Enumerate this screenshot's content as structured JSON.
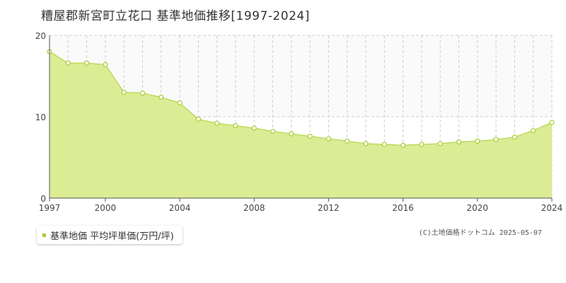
{
  "chart_data": {
    "type": "area",
    "title": "糟屋郡新宮町立花口 基準地価推移[1997-2024]",
    "x": [
      1997,
      1998,
      1999,
      2000,
      2001,
      2002,
      2003,
      2004,
      2005,
      2006,
      2007,
      2008,
      2009,
      2010,
      2011,
      2012,
      2013,
      2014,
      2015,
      2016,
      2017,
      2018,
      2019,
      2020,
      2021,
      2022,
      2023,
      2024
    ],
    "series": [
      {
        "name": "基準地価 平均坪単価(万円/坪)",
        "values": [
          18.0,
          16.6,
          16.6,
          16.4,
          13.0,
          12.9,
          12.4,
          11.7,
          9.7,
          9.2,
          8.9,
          8.6,
          8.2,
          7.9,
          7.6,
          7.3,
          7.0,
          6.7,
          6.6,
          6.5,
          6.6,
          6.7,
          6.9,
          7.0,
          7.2,
          7.5,
          8.3,
          9.3
        ]
      }
    ],
    "xlim": [
      1997,
      2024
    ],
    "ylim": [
      0,
      20
    ],
    "x_ticks": [
      1997,
      2000,
      2004,
      2008,
      2012,
      2016,
      2020,
      2024
    ],
    "y_ticks": [
      0,
      10,
      20
    ],
    "grid": true,
    "legend_position": "bottom-left",
    "colors": {
      "fill": "#dbec95",
      "line": "#b5d64a",
      "marker": "#a8cc30"
    }
  },
  "legend": {
    "label": "基準地価 平均坪単価(万円/坪)"
  },
  "copyright": "(C)土地価格ドットコム 2025-05-07"
}
